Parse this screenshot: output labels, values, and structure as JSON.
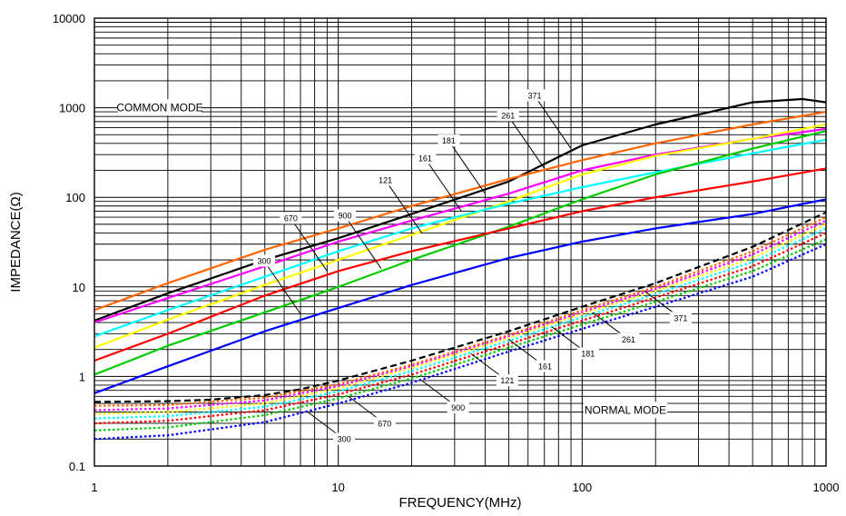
{
  "chart_data": {
    "type": "line",
    "title": "",
    "xlabel": "FREQUENCY(MHz)",
    "ylabel": "IMPEDANCE(Ω)",
    "x_scale": "log",
    "y_scale": "log",
    "xlim": [
      1,
      1000
    ],
    "ylim": [
      0.1,
      10000
    ],
    "x_ticks": [
      "1",
      "10",
      "100",
      "1000"
    ],
    "y_ticks": [
      "0.1",
      "1",
      "10",
      "100",
      "1000",
      "10000"
    ],
    "grid": true,
    "legend": "none",
    "mode_labels": [
      "COMMON MODE",
      "NORMAL MODE"
    ],
    "series": [
      {
        "group": "common",
        "color": "#000000",
        "dash": "solid",
        "x": [
          1,
          2,
          5,
          10,
          20,
          50,
          100,
          200,
          500,
          800,
          1000
        ],
        "y": [
          4.2,
          8.5,
          20,
          35,
          65,
          150,
          380,
          650,
          1150,
          1250,
          1150
        ]
      },
      {
        "group": "common",
        "color": "#ff6600",
        "dash": "solid",
        "x": [
          1,
          2,
          5,
          10,
          20,
          50,
          100,
          200,
          500,
          1000
        ],
        "y": [
          5.5,
          11,
          26,
          45,
          80,
          160,
          260,
          400,
          650,
          900
        ]
      },
      {
        "group": "common",
        "color": "#ff00ff",
        "dash": "solid",
        "x": [
          1,
          2,
          5,
          10,
          20,
          50,
          100,
          200,
          500,
          1000
        ],
        "y": [
          4,
          7.5,
          17,
          32,
          55,
          110,
          200,
          300,
          450,
          580
        ]
      },
      {
        "group": "common",
        "color": "#ffff00",
        "dash": "solid",
        "x": [
          1,
          2,
          5,
          10,
          20,
          50,
          100,
          200,
          500,
          1000
        ],
        "y": [
          2.1,
          4.3,
          10.5,
          20,
          38,
          90,
          180,
          290,
          450,
          650
        ]
      },
      {
        "group": "common",
        "color": "#00ffff",
        "dash": "solid",
        "x": [
          1,
          2,
          5,
          10,
          20,
          50,
          100,
          200,
          500,
          1000
        ],
        "y": [
          2.8,
          5.5,
          13,
          25,
          45,
          85,
          130,
          190,
          310,
          440
        ]
      },
      {
        "group": "common",
        "color": "#00cc00",
        "dash": "solid",
        "x": [
          1,
          2,
          5,
          10,
          20,
          50,
          100,
          200,
          500,
          1000
        ],
        "y": [
          1.05,
          2.2,
          5.2,
          10,
          20,
          47,
          95,
          180,
          350,
          550
        ]
      },
      {
        "group": "common",
        "color": "#ff0000",
        "dash": "solid",
        "x": [
          1,
          2,
          5,
          10,
          20,
          50,
          100,
          200,
          500,
          1000
        ],
        "y": [
          1.5,
          3,
          8,
          15,
          25,
          45,
          70,
          100,
          150,
          210
        ]
      },
      {
        "group": "common",
        "color": "#0000ff",
        "dash": "solid",
        "x": [
          1,
          2,
          5,
          10,
          20,
          50,
          100,
          200,
          500,
          1000
        ],
        "y": [
          0.65,
          1.3,
          3.2,
          5.8,
          10.5,
          21,
          32,
          45,
          65,
          95
        ]
      },
      {
        "group": "normal",
        "color": "#000000",
        "dash": "dash",
        "x": [
          1,
          2,
          3,
          5,
          7,
          10,
          20,
          50,
          100,
          200,
          500,
          1000
        ],
        "y": [
          0.52,
          0.53,
          0.55,
          0.62,
          0.72,
          0.9,
          1.5,
          3.2,
          6,
          11,
          28,
          68
        ]
      },
      {
        "group": "normal",
        "color": "#ff6600",
        "dash": "dot",
        "x": [
          1,
          2,
          5,
          10,
          20,
          50,
          100,
          200,
          500,
          1000
        ],
        "y": [
          0.47,
          0.48,
          0.58,
          0.82,
          1.35,
          2.9,
          5.5,
          10,
          25,
          60
        ]
      },
      {
        "group": "normal",
        "color": "#ff00ff",
        "dash": "dot",
        "x": [
          1,
          2,
          5,
          10,
          20,
          50,
          100,
          200,
          500,
          1000
        ],
        "y": [
          0.42,
          0.44,
          0.54,
          0.78,
          1.3,
          2.8,
          5.2,
          9.5,
          23,
          55
        ]
      },
      {
        "group": "normal",
        "color": "#ffff00",
        "dash": "dot",
        "x": [
          1,
          2,
          5,
          10,
          20,
          50,
          100,
          200,
          500,
          1000
        ],
        "y": [
          0.38,
          0.4,
          0.5,
          0.74,
          1.25,
          2.7,
          5,
          9,
          21,
          50
        ]
      },
      {
        "group": "normal",
        "color": "#00ffff",
        "dash": "dot",
        "x": [
          1,
          2,
          5,
          10,
          20,
          50,
          100,
          200,
          500,
          1000
        ],
        "y": [
          0.34,
          0.36,
          0.46,
          0.68,
          1.15,
          2.5,
          4.6,
          8.3,
          19,
          45
        ]
      },
      {
        "group": "normal",
        "color": "#ff0000",
        "dash": "dot",
        "x": [
          1,
          2,
          5,
          10,
          20,
          50,
          100,
          200,
          500,
          1000
        ],
        "y": [
          0.3,
          0.32,
          0.42,
          0.63,
          1.05,
          2.3,
          4.2,
          7.6,
          17,
          40
        ]
      },
      {
        "group": "normal",
        "color": "#00cc00",
        "dash": "dot",
        "x": [
          1,
          2,
          5,
          10,
          20,
          50,
          100,
          200,
          500,
          1000
        ],
        "y": [
          0.25,
          0.27,
          0.37,
          0.57,
          0.95,
          2.1,
          3.8,
          6.8,
          15,
          34
        ]
      },
      {
        "group": "normal",
        "color": "#0000ff",
        "dash": "dot",
        "x": [
          1,
          2,
          5,
          10,
          20,
          50,
          100,
          200,
          500,
          1000
        ],
        "y": [
          0.2,
          0.22,
          0.31,
          0.5,
          0.85,
          1.9,
          3.4,
          6,
          13,
          30
        ]
      }
    ],
    "annotations": [
      {
        "text": "371",
        "group": "common",
        "at": [
          90,
          350
        ]
      },
      {
        "text": "261",
        "group": "common",
        "at": [
          70,
          210
        ]
      },
      {
        "text": "181",
        "group": "common",
        "at": [
          40,
          110
        ]
      },
      {
        "text": "161",
        "group": "common",
        "at": [
          32,
          70
        ]
      },
      {
        "text": "121",
        "group": "common",
        "at": [
          22,
          40
        ]
      },
      {
        "text": "900",
        "group": "common",
        "at": [
          15,
          16
        ]
      },
      {
        "text": "670",
        "group": "common",
        "at": [
          9,
          15
        ]
      },
      {
        "text": "300",
        "group": "common",
        "at": [
          7,
          5
        ]
      },
      {
        "text": "371",
        "group": "normal",
        "at": [
          180,
          9
        ]
      },
      {
        "text": "261",
        "group": "normal",
        "at": [
          110,
          5.2
        ]
      },
      {
        "text": "181",
        "group": "normal",
        "at": [
          75,
          3.6
        ]
      },
      {
        "text": "161",
        "group": "normal",
        "at": [
          50,
          2.6
        ]
      },
      {
        "text": "121",
        "group": "normal",
        "at": [
          35,
          1.8
        ]
      },
      {
        "text": "900",
        "group": "normal",
        "at": [
          22,
          0.9
        ]
      },
      {
        "text": "670",
        "group": "normal",
        "at": [
          11,
          0.6
        ]
      },
      {
        "text": "300",
        "group": "normal",
        "at": [
          7.5,
          0.4
        ]
      }
    ]
  }
}
